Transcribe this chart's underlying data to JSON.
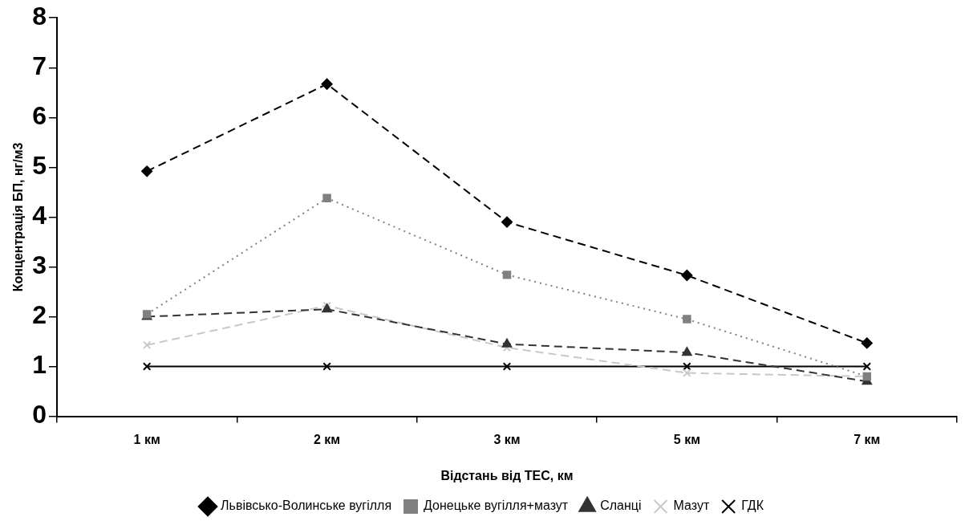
{
  "chart_data": {
    "type": "line",
    "xlabel": "Відстань від ТЕС, км",
    "ylabel": "Концентрація БП, нг/м3",
    "categories": [
      "1 км",
      "2 км",
      "3 км",
      "5 км",
      "7 км"
    ],
    "ylim": [
      0,
      8
    ],
    "yticks": [
      0,
      1,
      2,
      3,
      4,
      5,
      6,
      7,
      8
    ],
    "grid": false,
    "legend": "bottom",
    "series": [
      {
        "name": "Львівсько-Волинське вугілля",
        "color": "#000000",
        "line_style": "dashed",
        "marker": "diamond",
        "values": [
          4.92,
          6.67,
          3.9,
          2.83,
          1.47
        ]
      },
      {
        "name": "Донецьке вугілля+мазут",
        "color": "#808080",
        "line_style": "dotted",
        "marker": "square",
        "values": [
          2.05,
          4.38,
          2.84,
          1.95,
          0.8
        ]
      },
      {
        "name": "Сланці",
        "color": "#333333",
        "line_style": "dashed",
        "marker": "triangle",
        "values": [
          2.0,
          2.15,
          1.45,
          1.28,
          0.7
        ]
      },
      {
        "name": "Мазут",
        "color": "#c8c8c8",
        "line_style": "dashed",
        "marker": "cross",
        "values": [
          1.43,
          2.22,
          1.38,
          0.87,
          0.8
        ]
      },
      {
        "name": "ГДК",
        "color": "#000000",
        "line_style": "solid",
        "marker": "cross",
        "values": [
          1,
          1,
          1,
          1,
          1
        ]
      }
    ]
  }
}
